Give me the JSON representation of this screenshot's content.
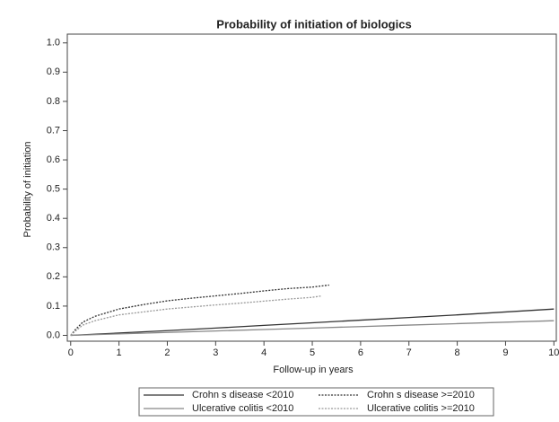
{
  "chart_data": {
    "type": "line",
    "title": "Probability of initiation of biologics",
    "xlabel": "Follow-up in years",
    "ylabel": "Probability of initiation",
    "xlim": [
      -0.07,
      10.05
    ],
    "ylim": [
      -0.02,
      1.03
    ],
    "xticks": [
      0,
      1,
      2,
      3,
      4,
      5,
      6,
      7,
      8,
      9,
      10
    ],
    "yticks": [
      {
        "value": 0,
        "label": "0.0"
      },
      0.1,
      0.2,
      0.3,
      0.4,
      0.5,
      0.6,
      0.7,
      0.8,
      0.9,
      {
        "value": 1,
        "label": "1.0"
      }
    ],
    "grid": false,
    "legend": "bottom",
    "series": [
      {
        "name": "Crohn s disease <2010",
        "color": "#333333",
        "style": "solid",
        "x": [
          0,
          1,
          2,
          3,
          4,
          5,
          6,
          7,
          8,
          9,
          10
        ],
        "values": [
          0,
          0.008,
          0.016,
          0.025,
          0.034,
          0.043,
          0.052,
          0.061,
          0.07,
          0.08,
          0.09
        ]
      },
      {
        "name": "Crohn s disease >=2010",
        "color": "#333333",
        "style": "dotted",
        "x": [
          0,
          0.1,
          0.25,
          0.5,
          1,
          1.5,
          2,
          2.5,
          3,
          3.5,
          4,
          4.5,
          5,
          5.35
        ],
        "values": [
          0,
          0.02,
          0.045,
          0.065,
          0.09,
          0.105,
          0.118,
          0.127,
          0.135,
          0.143,
          0.152,
          0.16,
          0.165,
          0.172
        ]
      },
      {
        "name": "Ulcerative colitis <2010",
        "color": "#888888",
        "style": "solid",
        "x": [
          0,
          1,
          2,
          3,
          4,
          5,
          6,
          7,
          8,
          9,
          10
        ],
        "values": [
          0,
          0.005,
          0.01,
          0.015,
          0.02,
          0.025,
          0.03,
          0.035,
          0.04,
          0.045,
          0.05
        ]
      },
      {
        "name": "Ulcerative colitis >=2010",
        "color": "#999999",
        "style": "dotted",
        "x": [
          0,
          0.1,
          0.25,
          0.5,
          1,
          1.5,
          2,
          2.5,
          3,
          3.5,
          4,
          4.5,
          5,
          5.2
        ],
        "values": [
          0,
          0.015,
          0.035,
          0.05,
          0.07,
          0.08,
          0.09,
          0.097,
          0.104,
          0.11,
          0.117,
          0.124,
          0.13,
          0.135
        ]
      }
    ]
  }
}
